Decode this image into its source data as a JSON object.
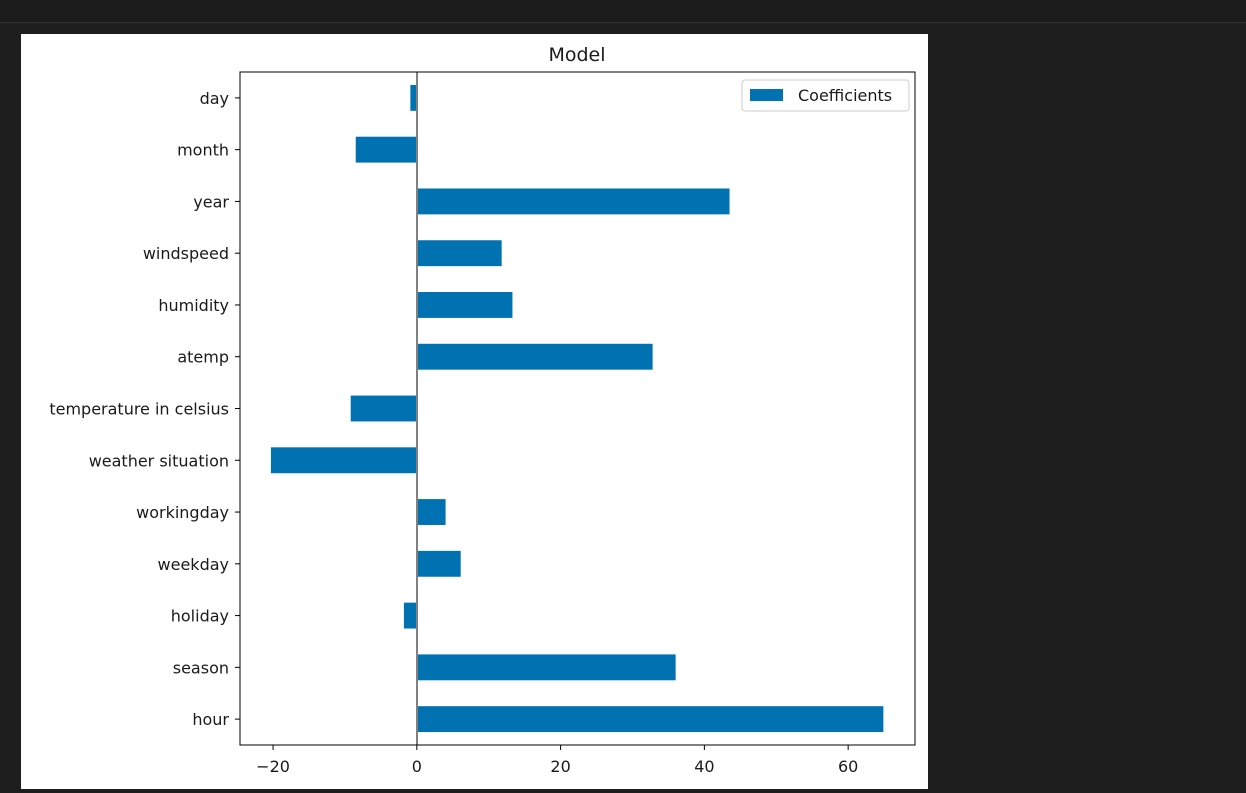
{
  "chart_data": {
    "type": "bar",
    "orientation": "horizontal",
    "title": "Model",
    "xlabel": "",
    "ylabel": "",
    "categories": [
      "day",
      "month",
      "year",
      "windspeed",
      "humidity",
      "atemp",
      "temperature in celsius",
      "weather situation",
      "workingday",
      "weekday",
      "holiday",
      "season",
      "hour"
    ],
    "series": [
      {
        "name": "Coefficients",
        "color": "#0072b2",
        "values": [
          -0.9,
          -8.5,
          43.5,
          11.8,
          13.3,
          32.8,
          -9.2,
          -20.3,
          4.0,
          6.1,
          -1.8,
          36.0,
          64.9
        ]
      }
    ],
    "xlim": [
      -24.6,
      69.3
    ],
    "xticks": [
      -20,
      0,
      20,
      40,
      60
    ],
    "xtick_labels": [
      "−20",
      "0",
      "20",
      "40",
      "60"
    ],
    "zero_line": true,
    "grid": false,
    "legend": "top-right"
  }
}
